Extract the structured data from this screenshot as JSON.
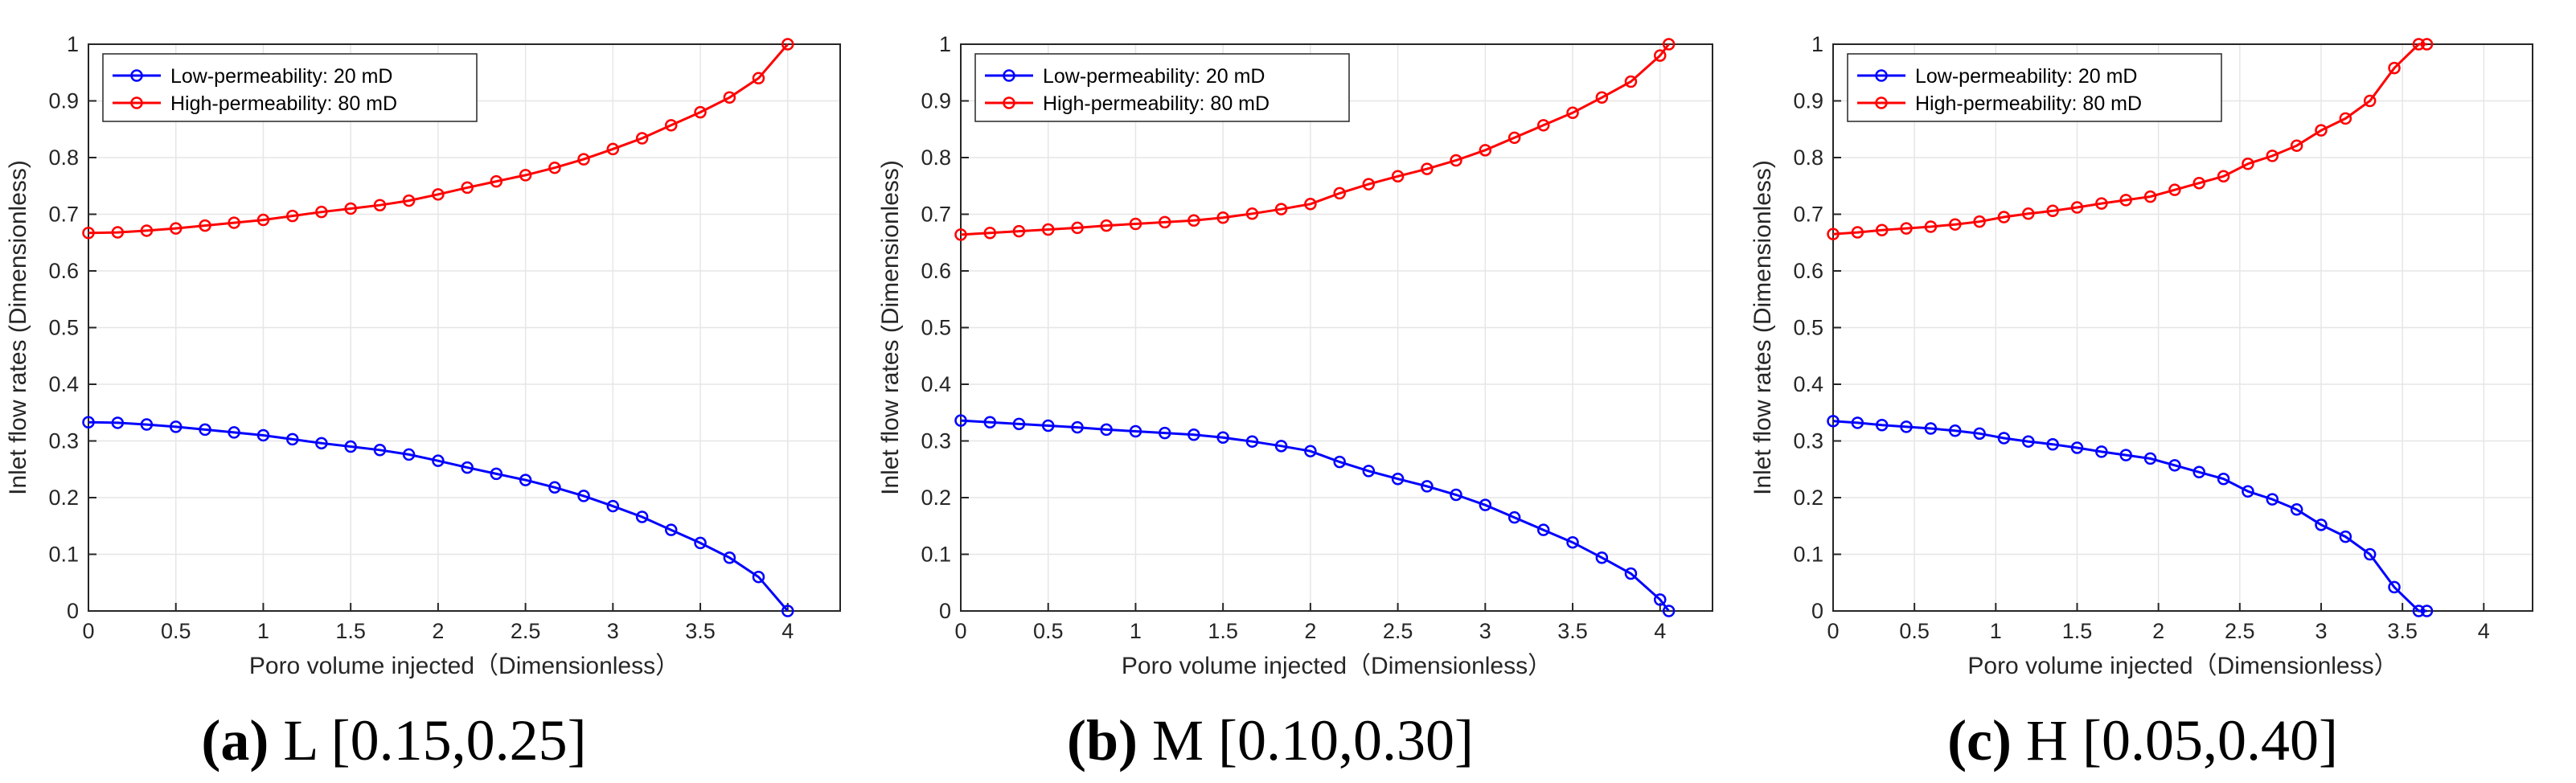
{
  "chart_data": [
    {
      "type": "line",
      "panel": "a",
      "caption_letter": "(a)",
      "caption_rest": " L [0.15,0.25]",
      "xlabel": "Poro volume injected（Dimensionless）",
      "ylabel": "Inlet flow rates (Dimensionless)",
      "xlim": [
        0,
        4.3
      ],
      "ylim": [
        0,
        1
      ],
      "xticks": [
        "0",
        "0.5",
        "1",
        "1.5",
        "2",
        "2.5",
        "3",
        "3.5",
        "4"
      ],
      "yticks": [
        "0",
        "0.1",
        "0.2",
        "0.3",
        "0.4",
        "0.5",
        "0.6",
        "0.7",
        "0.8",
        "0.9",
        "1"
      ],
      "grid": true,
      "legend_position": "top-left",
      "series": [
        {
          "name": "Low-permeability: 20 mD",
          "color": "#0000ff",
          "marker": "circle",
          "x": [
            0,
            0.167,
            0.333,
            0.5,
            0.667,
            0.833,
            1.0,
            1.167,
            1.333,
            1.5,
            1.667,
            1.833,
            2.0,
            2.167,
            2.333,
            2.5,
            2.667,
            2.833,
            3.0,
            3.167,
            3.333,
            3.5,
            3.667,
            3.833,
            4.0
          ],
          "y": [
            0.333,
            0.332,
            0.329,
            0.325,
            0.32,
            0.315,
            0.31,
            0.303,
            0.296,
            0.29,
            0.284,
            0.276,
            0.265,
            0.253,
            0.242,
            0.231,
            0.218,
            0.203,
            0.185,
            0.166,
            0.143,
            0.12,
            0.094,
            0.06,
            0.0
          ]
        },
        {
          "name": "High-permeability: 80 mD",
          "color": "#ff0000",
          "marker": "circle",
          "x": [
            0,
            0.167,
            0.333,
            0.5,
            0.667,
            0.833,
            1.0,
            1.167,
            1.333,
            1.5,
            1.667,
            1.833,
            2.0,
            2.167,
            2.333,
            2.5,
            2.667,
            2.833,
            3.0,
            3.167,
            3.333,
            3.5,
            3.667,
            3.833,
            4.0
          ],
          "y": [
            0.667,
            0.668,
            0.671,
            0.675,
            0.68,
            0.685,
            0.69,
            0.697,
            0.704,
            0.71,
            0.716,
            0.724,
            0.735,
            0.747,
            0.758,
            0.769,
            0.782,
            0.797,
            0.815,
            0.834,
            0.857,
            0.88,
            0.906,
            0.94,
            1.0
          ]
        }
      ]
    },
    {
      "type": "line",
      "panel": "b",
      "caption_letter": "(b)",
      "caption_rest": " M [0.10,0.30]",
      "xlabel": "Poro volume injected（Dimensionless）",
      "ylabel": "Inlet flow rates (Dimensionless)",
      "xlim": [
        0,
        4.3
      ],
      "ylim": [
        0,
        1
      ],
      "xticks": [
        "0",
        "0.5",
        "1",
        "1.5",
        "2",
        "2.5",
        "3",
        "3.5",
        "4"
      ],
      "yticks": [
        "0",
        "0.1",
        "0.2",
        "0.3",
        "0.4",
        "0.5",
        "0.6",
        "0.7",
        "0.8",
        "0.9",
        "1"
      ],
      "grid": true,
      "legend_position": "top-left",
      "series": [
        {
          "name": "Low-permeability: 20 mD",
          "color": "#0000ff",
          "marker": "circle",
          "x": [
            0,
            0.167,
            0.333,
            0.5,
            0.667,
            0.833,
            1.0,
            1.167,
            1.333,
            1.5,
            1.667,
            1.833,
            2.0,
            2.167,
            2.333,
            2.5,
            2.667,
            2.833,
            3.0,
            3.167,
            3.333,
            3.5,
            3.667,
            3.833,
            4.0,
            4.05
          ],
          "y": [
            0.336,
            0.333,
            0.33,
            0.327,
            0.324,
            0.32,
            0.317,
            0.314,
            0.311,
            0.306,
            0.299,
            0.291,
            0.282,
            0.263,
            0.247,
            0.233,
            0.22,
            0.205,
            0.187,
            0.165,
            0.143,
            0.121,
            0.094,
            0.066,
            0.02,
            0.0
          ]
        },
        {
          "name": "High-permeability: 80 mD",
          "color": "#ff0000",
          "marker": "circle",
          "x": [
            0,
            0.167,
            0.333,
            0.5,
            0.667,
            0.833,
            1.0,
            1.167,
            1.333,
            1.5,
            1.667,
            1.833,
            2.0,
            2.167,
            2.333,
            2.5,
            2.667,
            2.833,
            3.0,
            3.167,
            3.333,
            3.5,
            3.667,
            3.833,
            4.0,
            4.05
          ],
          "y": [
            0.664,
            0.667,
            0.67,
            0.673,
            0.676,
            0.68,
            0.683,
            0.686,
            0.689,
            0.694,
            0.701,
            0.709,
            0.718,
            0.737,
            0.753,
            0.767,
            0.78,
            0.795,
            0.813,
            0.835,
            0.857,
            0.879,
            0.906,
            0.934,
            0.98,
            1.0
          ]
        }
      ]
    },
    {
      "type": "line",
      "panel": "c",
      "caption_letter": "(c)",
      "caption_rest": " H [0.05,0.40]",
      "xlabel": "Poro volume injected（Dimensionless）",
      "ylabel": "Inlet flow rates (Dimensionless)",
      "xlim": [
        0,
        4.3
      ],
      "ylim": [
        0,
        1
      ],
      "xticks": [
        "0",
        "0.5",
        "1",
        "1.5",
        "2",
        "2.5",
        "3",
        "3.5",
        "4"
      ],
      "yticks": [
        "0",
        "0.1",
        "0.2",
        "0.3",
        "0.4",
        "0.5",
        "0.6",
        "0.7",
        "0.8",
        "0.9",
        "1"
      ],
      "grid": true,
      "legend_position": "top-left",
      "series": [
        {
          "name": "Low-permeability: 20 mD",
          "color": "#0000ff",
          "marker": "circle",
          "x": [
            0,
            0.15,
            0.3,
            0.45,
            0.6,
            0.75,
            0.9,
            1.05,
            1.2,
            1.35,
            1.5,
            1.65,
            1.8,
            1.95,
            2.1,
            2.25,
            2.4,
            2.55,
            2.7,
            2.85,
            3.0,
            3.15,
            3.3,
            3.45,
            3.6,
            3.65
          ],
          "y": [
            0.335,
            0.332,
            0.328,
            0.325,
            0.322,
            0.318,
            0.313,
            0.305,
            0.299,
            0.294,
            0.288,
            0.281,
            0.275,
            0.269,
            0.257,
            0.245,
            0.233,
            0.211,
            0.197,
            0.179,
            0.152,
            0.131,
            0.1,
            0.042,
            0.0,
            0.0
          ]
        },
        {
          "name": "High-permeability: 80 mD",
          "color": "#ff0000",
          "marker": "circle",
          "x": [
            0,
            0.15,
            0.3,
            0.45,
            0.6,
            0.75,
            0.9,
            1.05,
            1.2,
            1.35,
            1.5,
            1.65,
            1.8,
            1.95,
            2.1,
            2.25,
            2.4,
            2.55,
            2.7,
            2.85,
            3.0,
            3.15,
            3.3,
            3.45,
            3.6,
            3.65
          ],
          "y": [
            0.665,
            0.668,
            0.672,
            0.675,
            0.678,
            0.682,
            0.687,
            0.695,
            0.701,
            0.706,
            0.712,
            0.719,
            0.725,
            0.731,
            0.743,
            0.755,
            0.767,
            0.789,
            0.803,
            0.821,
            0.848,
            0.869,
            0.9,
            0.958,
            1.0,
            1.0
          ]
        }
      ]
    }
  ]
}
